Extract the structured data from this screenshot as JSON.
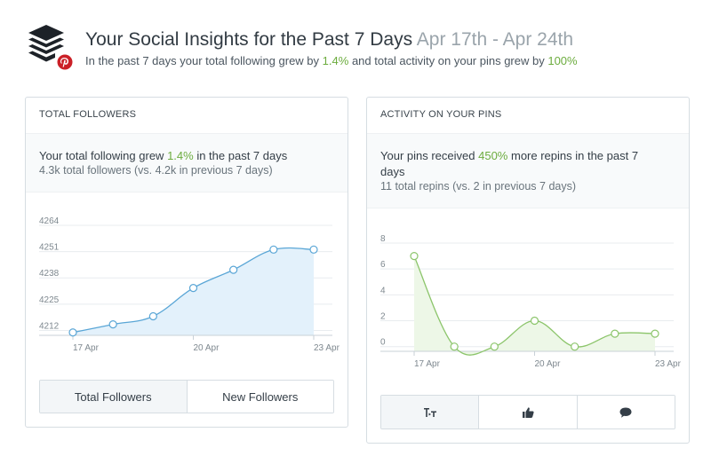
{
  "header": {
    "title": "Your Social Insights for the Past 7 Days",
    "date_range": "Apr 17th - Apr 24th",
    "subtitle_pre": "In the past 7 days your total following grew by",
    "subtitle_growth": "1.4%",
    "subtitle_mid": "and total activity on your pins grew by",
    "subtitle_activity": "100%",
    "logo_icon": "buffer-stack-icon",
    "badge_icon": "pinterest-badge-icon",
    "badge_color": "#cb2027"
  },
  "followers_card": {
    "title": "TOTAL FOLLOWERS",
    "summary_pre": "Your total following grew",
    "summary_value": "1.4%",
    "summary_post": "in the past 7 days",
    "detail": "4.3k total followers (vs. 4.2k in previous 7 days)",
    "buttons": [
      {
        "label": "Total Followers",
        "active": true
      },
      {
        "label": "New Followers",
        "active": false
      }
    ]
  },
  "pins_card": {
    "title": "ACTIVITY ON YOUR PINS",
    "summary_pre": "Your pins received",
    "summary_value": "450%",
    "summary_post": "more repins in the past 7 days",
    "detail": "11 total repins (vs. 2 in previous 7 days)",
    "buttons": [
      {
        "icon": "repin-icon"
      },
      {
        "icon": "thumbs-up-icon"
      },
      {
        "icon": "comment-icon"
      }
    ]
  },
  "colors": {
    "accent_green": "#6cac3e",
    "followers_line": "#5aa6d6",
    "followers_fill": "#e3f1fb",
    "pins_line": "#8cc56b",
    "pins_fill": "#edf7e7"
  },
  "chart_data": [
    {
      "type": "area",
      "x": [
        "17 Apr",
        "18 Apr",
        "19 Apr",
        "20 Apr",
        "21 Apr",
        "22 Apr",
        "23 Apr"
      ],
      "x_tick_labels": [
        "17 Apr",
        "20 Apr",
        "23 Apr"
      ],
      "y_tick_labels": [
        "4212",
        "4225",
        "4238",
        "4251",
        "4264"
      ],
      "values": [
        4211,
        4215,
        4219,
        4233,
        4242,
        4252,
        4252
      ],
      "ylim": [
        4210,
        4264
      ],
      "grid": true
    },
    {
      "type": "area",
      "x": [
        "17 Apr",
        "18 Apr",
        "19 Apr",
        "20 Apr",
        "21 Apr",
        "22 Apr",
        "23 Apr"
      ],
      "x_tick_labels": [
        "17 Apr",
        "20 Apr",
        "23 Apr"
      ],
      "y_tick_labels": [
        "0",
        "2",
        "4",
        "6",
        "8"
      ],
      "values": [
        7,
        0,
        0,
        2,
        0,
        1,
        1
      ],
      "ylim": [
        -0.5,
        8
      ],
      "grid": true
    }
  ]
}
